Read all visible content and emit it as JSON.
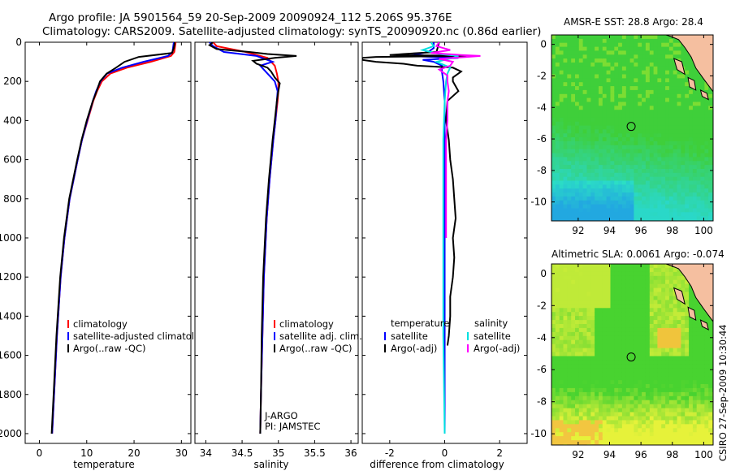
{
  "title": {
    "line1": "Argo profile: JA 5901564_59 20-Sep-2009 20090924_112 5.206S 95.376E",
    "line2": "Climatology: CARS2009. Satellite-adjusted climatology: synTS_20090920.nc (0.86d earlier)"
  },
  "colors": {
    "climatology": "#ff0000",
    "satellite": "#0000ff",
    "argo": "#000000",
    "sal_satellite": "#00e0e0",
    "sal_argo": "#ff00ff",
    "land": "#f5bfa0"
  },
  "credit": "CSIRO 27-Sep-2009 10:30:44",
  "chart_data": [
    {
      "type": "line",
      "id": "temperature",
      "xlabel": "temperature",
      "ylabel": "",
      "xlim": [
        -3,
        32
      ],
      "ylim": [
        2050,
        0
      ],
      "xticks": [
        0,
        10,
        20,
        30
      ],
      "yticks": [
        0,
        200,
        400,
        600,
        800,
        1000,
        1200,
        1400,
        1600,
        1800,
        2000
      ],
      "legend": [
        "climatology",
        "satellite-adjusted climatology",
        "Argo(..raw -QC)"
      ],
      "series": [
        {
          "name": "climatology",
          "color": "#ff0000",
          "depth": [
            0,
            50,
            70,
            100,
            130,
            160,
            200,
            250,
            300,
            400,
            500,
            600,
            800,
            1000,
            1200,
            1500,
            1800,
            2000
          ],
          "values": [
            28.8,
            28.5,
            27.8,
            23.5,
            18.5,
            15.0,
            13.2,
            12.2,
            11.4,
            10.2,
            9.0,
            8.1,
            6.4,
            5.3,
            4.5,
            3.7,
            3.1,
            2.7
          ]
        },
        {
          "name": "satellite-adjusted climatology",
          "color": "#0000ff",
          "depth": [
            0,
            50,
            70,
            100,
            130,
            160,
            200,
            250,
            300,
            400,
            500,
            600,
            800,
            1000,
            1200,
            1500,
            1800,
            2000
          ],
          "values": [
            28.4,
            28.1,
            27.2,
            22.0,
            17.5,
            14.3,
            12.9,
            12.0,
            11.3,
            10.1,
            9.0,
            8.1,
            6.4,
            5.3,
            4.5,
            3.7,
            3.1,
            2.7
          ]
        },
        {
          "name": "Argo(..raw -QC)",
          "color": "#000000",
          "depth": [
            0,
            30,
            55,
            75,
            100,
            130,
            160,
            200,
            250,
            300,
            400,
            500,
            600,
            800,
            1000,
            1200,
            1500,
            1800,
            2000
          ],
          "values": [
            28.6,
            28.4,
            28.0,
            21.0,
            18.0,
            16.2,
            14.2,
            12.8,
            12.1,
            11.3,
            10.0,
            8.9,
            8.0,
            6.3,
            5.2,
            4.4,
            3.6,
            3.0,
            2.6
          ]
        }
      ]
    },
    {
      "type": "line",
      "id": "salinity",
      "xlabel": "salinity",
      "ylabel": "",
      "xlim": [
        33.85,
        36.1
      ],
      "ylim": [
        2050,
        0
      ],
      "xticks": [
        34,
        34.5,
        35,
        35.5,
        36
      ],
      "xticklabels": [
        "34",
        "34.5",
        "35",
        "35.5",
        "36"
      ],
      "legend": [
        "climatology",
        "satellite adj. clim.",
        "Argo(..raw -QC)"
      ],
      "annotation": [
        "J-ARGO",
        "PI: JAMSTEC"
      ],
      "series": [
        {
          "name": "climatology",
          "color": "#ff0000",
          "depth": [
            0,
            20,
            50,
            80,
            120,
            160,
            200,
            250,
            300,
            400,
            500,
            700,
            900,
            1200,
            1500,
            1800,
            2000
          ],
          "values": [
            34.1,
            34.15,
            34.55,
            34.85,
            34.95,
            34.98,
            35.0,
            35.0,
            34.99,
            34.96,
            34.93,
            34.88,
            34.84,
            34.8,
            34.78,
            34.76,
            34.75
          ]
        },
        {
          "name": "satellite adj. clim.",
          "color": "#0000ff",
          "depth": [
            0,
            20,
            50,
            70,
            100,
            120,
            160,
            200,
            250,
            300,
            400,
            500,
            700,
            900,
            1200,
            1500,
            1800,
            2000
          ],
          "values": [
            34.05,
            34.1,
            34.25,
            34.7,
            34.92,
            34.75,
            34.85,
            34.95,
            34.99,
            34.98,
            34.96,
            34.93,
            34.88,
            34.84,
            34.8,
            34.78,
            34.76,
            34.75
          ]
        },
        {
          "name": "Argo(..raw -QC)",
          "color": "#000000",
          "depth": [
            0,
            15,
            35,
            50,
            60,
            70,
            80,
            95,
            110,
            130,
            150,
            180,
            210,
            250,
            300,
            400,
            500,
            700,
            900,
            1200,
            1500,
            1800,
            2000
          ],
          "values": [
            34.1,
            34.05,
            34.15,
            34.6,
            34.85,
            35.25,
            34.95,
            34.65,
            34.7,
            34.85,
            34.9,
            34.95,
            35.02,
            35.0,
            34.98,
            34.95,
            34.92,
            34.87,
            34.83,
            34.79,
            34.77,
            34.76,
            34.75
          ]
        }
      ]
    },
    {
      "type": "line",
      "id": "difference",
      "xlabel": "difference from climatology",
      "ylabel": "",
      "xlim": [
        -3,
        3
      ],
      "ylim": [
        2050,
        0
      ],
      "xticks": [
        -2,
        0,
        2
      ],
      "legend_groups": [
        {
          "header": "temperature",
          "items": [
            "satellite",
            "Argo(-adj)"
          ]
        },
        {
          "header": "salinity",
          "items": [
            "satellite",
            "Argo(-adj)"
          ]
        }
      ],
      "series": [
        {
          "name": "temperature satellite",
          "color": "#0000ff",
          "depth": [
            0,
            30,
            50,
            70,
            80,
            90,
            100,
            120,
            150,
            200,
            300,
            500,
            1000,
            1500,
            2000
          ],
          "values": [
            -0.4,
            -0.4,
            -0.6,
            -1.3,
            0.5,
            -0.8,
            -0.4,
            -0.1,
            -0.1,
            -0.05,
            0,
            0,
            0,
            0,
            0
          ]
        },
        {
          "name": "temperature Argo(-adj)",
          "color": "#000000",
          "depth": [
            0,
            50,
            60,
            65,
            70,
            75,
            80,
            90,
            100,
            110,
            120,
            130,
            150,
            180,
            200,
            250,
            300,
            400,
            500,
            600,
            700,
            800,
            900,
            1000,
            1100,
            1200,
            1300,
            1400,
            1500,
            1550
          ],
          "values": [
            -0.2,
            -0.3,
            -1.5,
            -2.0,
            0.8,
            -2.5,
            -3.0,
            -3.0,
            -2.5,
            -1.5,
            -1.0,
            0.3,
            0.6,
            0.3,
            0.3,
            0.5,
            0.1,
            0.05,
            0.15,
            0.2,
            0.3,
            0.35,
            0.4,
            0.3,
            0.35,
            0.3,
            0.2,
            0.2,
            0.15,
            0.1
          ]
        },
        {
          "name": "salinity satellite",
          "color": "#00e0e0",
          "depth": [
            0,
            20,
            40,
            60,
            70,
            80,
            100,
            130,
            160,
            200,
            300,
            500,
            1000,
            1500,
            2000
          ],
          "values": [
            -0.5,
            -0.4,
            -0.8,
            -0.2,
            0.5,
            0.3,
            -0.3,
            0.2,
            0.1,
            0.05,
            0,
            -0.05,
            -0.05,
            -0.05,
            0
          ]
        },
        {
          "name": "salinity Argo(-adj)",
          "color": "#ff00ff",
          "depth": [
            0,
            20,
            40,
            55,
            65,
            70,
            75,
            85,
            100,
            120,
            140,
            170,
            200,
            250,
            300,
            400,
            500,
            700,
            1000
          ],
          "values": [
            -0.2,
            -0.3,
            0.2,
            -0.5,
            0.6,
            1.3,
            0.8,
            -0.2,
            0.3,
            0.2,
            -0.2,
            0.1,
            0.1,
            0.15,
            0.1,
            0.1,
            0.05,
            0.05,
            0.05
          ]
        }
      ]
    },
    {
      "type": "heatmap",
      "id": "sst_map",
      "title": "AMSR-E SST: 28.8 Argo: 28.4",
      "xlim": [
        90.3,
        100.6
      ],
      "ylim": [
        -11.2,
        0.6
      ],
      "xticks": [
        92,
        94,
        96,
        98,
        100
      ],
      "yticks": [
        0,
        -2,
        -4,
        -6,
        -8,
        -10
      ],
      "marker": {
        "lon": 95.376,
        "lat": -5.206
      }
    },
    {
      "type": "heatmap",
      "id": "sla_map",
      "title": "Altimetric SLA: 0.0061 Argo: -0.074",
      "xlim": [
        90.3,
        100.6
      ],
      "ylim": [
        -10.7,
        0.6
      ],
      "xticks": [
        92,
        94,
        96,
        98,
        100
      ],
      "yticks": [
        0,
        -2,
        -4,
        -6,
        -8,
        -10
      ],
      "marker": {
        "lon": 95.376,
        "lat": -5.206
      }
    }
  ]
}
